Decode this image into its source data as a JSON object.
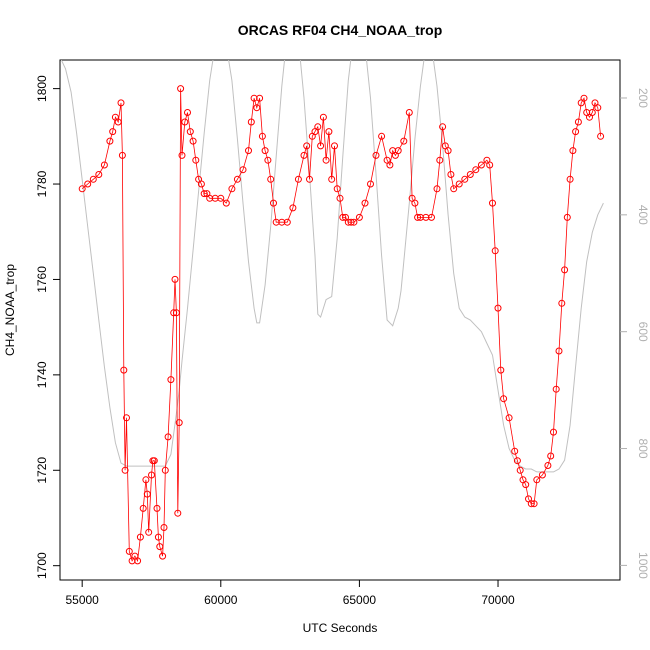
{
  "chart_data": {
    "type": "line",
    "title": "ORCAS RF04 CH4_NOAA_trop",
    "xlabel": "UTC Seconds",
    "ylabel": "CH4_NOAA_trop",
    "xlim": [
      54200,
      74400
    ],
    "ylim": [
      1697,
      1806
    ],
    "y2lim": [
      1025,
      135
    ],
    "x_ticks": [
      55000,
      60000,
      65000,
      70000
    ],
    "y_ticks": [
      1700,
      1720,
      1740,
      1760,
      1780,
      1800
    ],
    "y2_ticks": [
      200,
      400,
      600,
      800,
      1000
    ],
    "colors": {
      "series": "#ff0000",
      "secondary": "#c0c0c0",
      "axis": "#000000",
      "secondary_axis": "#b0b0b0"
    },
    "grid": false,
    "series": [
      {
        "x": [
          55000,
          55200,
          55400,
          55600,
          55800,
          56000,
          56100,
          56200,
          56300,
          56400,
          56450,
          56500,
          56550,
          56600,
          56700,
          56800,
          56900,
          57000,
          57100,
          57200,
          57300,
          57350,
          57400,
          57500,
          57550,
          57600,
          57700,
          57750,
          57800,
          57900,
          57950,
          58000,
          58100,
          58200,
          58300,
          58350,
          58400,
          58450,
          58500,
          58550,
          58600,
          58700,
          58800,
          58900,
          59000,
          59100,
          59200,
          59300,
          59400,
          59500,
          59600,
          59800,
          60000,
          60200,
          60400,
          60600,
          60800,
          61000,
          61100,
          61200,
          61300,
          61400,
          61500,
          61600,
          61700,
          61800,
          61900,
          62000,
          62200,
          62400,
          62600,
          62800,
          63000,
          63100,
          63200,
          63300,
          63400,
          63500,
          63600,
          63700,
          63800,
          63900,
          64000,
          64100,
          64200,
          64300,
          64400,
          64500,
          64600,
          64700,
          64800,
          65000,
          65200,
          65400,
          65600,
          65800,
          66000,
          66100,
          66200,
          66300,
          66400,
          66600,
          66800,
          66900,
          67000,
          67100,
          67200,
          67400,
          67600,
          67800,
          67900,
          68000,
          68100,
          68200,
          68300,
          68400,
          68600,
          68800,
          69000,
          69200,
          69400,
          69600,
          69700,
          69800,
          69900,
          70000,
          70100,
          70200,
          70400,
          70600,
          70700,
          70800,
          70900,
          71000,
          71100,
          71200,
          71300,
          71400,
          71600,
          71800,
          71900,
          72000,
          72100,
          72200,
          72300,
          72400,
          72500,
          72600,
          72700,
          72800,
          72900,
          73000,
          73100,
          73200,
          73300,
          73400,
          73500,
          73600,
          73700
        ],
        "y": [
          1779,
          1780,
          1781,
          1782,
          1784,
          1789,
          1791,
          1794,
          1793,
          1797,
          1786,
          1741,
          1720,
          1731,
          1703,
          1701,
          1702,
          1701,
          1706,
          1712,
          1718,
          1715,
          1707,
          1719,
          1722,
          1722,
          1712,
          1706,
          1704,
          1702,
          1708,
          1720,
          1727,
          1739,
          1753,
          1760,
          1753,
          1711,
          1730,
          1800,
          1786,
          1793,
          1795,
          1791,
          1789,
          1785,
          1781,
          1780,
          1778,
          1778,
          1777,
          1777,
          1777,
          1776,
          1779,
          1781,
          1783,
          1787,
          1793,
          1798,
          1796,
          1798,
          1790,
          1787,
          1785,
          1781,
          1776,
          1772,
          1772,
          1772,
          1775,
          1781,
          1786,
          1788,
          1781,
          1790,
          1791,
          1792,
          1788,
          1794,
          1785,
          1791,
          1781,
          1788,
          1779,
          1777,
          1773,
          1773,
          1772,
          1772,
          1772,
          1773,
          1776,
          1780,
          1786,
          1790,
          1785,
          1784,
          1787,
          1786,
          1787,
          1789,
          1795,
          1777,
          1776,
          1773,
          1773,
          1773,
          1773,
          1779,
          1785,
          1792,
          1788,
          1787,
          1782,
          1779,
          1780,
          1781,
          1782,
          1783,
          1784,
          1785,
          1784,
          1776,
          1766,
          1754,
          1741,
          1735,
          1731,
          1724,
          1722,
          1720,
          1718,
          1717,
          1714,
          1713,
          1713,
          1718,
          1719,
          1721,
          1723,
          1728,
          1737,
          1745,
          1755,
          1762,
          1773,
          1781,
          1787,
          1791,
          1793,
          1797,
          1798,
          1795,
          1794,
          1795,
          1797,
          1796,
          1790
        ]
      },
      {
        "x": [
          54200,
          54400,
          54600,
          54800,
          55000,
          55200,
          55400,
          55600,
          55800,
          56000,
          56200,
          56400,
          56600,
          56800,
          57000,
          57400,
          57800,
          58000,
          58200,
          58400,
          58500,
          58600,
          58800,
          59000,
          59200,
          59400,
          59600,
          59800,
          60000,
          60200,
          60400,
          60600,
          60800,
          61000,
          61200,
          61300,
          61400,
          61600,
          61800,
          62000,
          62200,
          62400,
          62600,
          62800,
          63000,
          63200,
          63400,
          63500,
          63600,
          63800,
          64000,
          64200,
          64400,
          64600,
          64800,
          65000,
          65200,
          65400,
          65600,
          65800,
          66000,
          66200,
          66400,
          66500,
          66600,
          66800,
          67000,
          67200,
          67400,
          67600,
          67800,
          68000,
          68200,
          68400,
          68600,
          68800,
          69000,
          69200,
          69400,
          69600,
          69800,
          70000,
          70200,
          70400,
          70600,
          70800,
          71000,
          71200,
          71400,
          71600,
          71800,
          72000,
          72200,
          72400,
          72600,
          72800,
          73000,
          73200,
          73400,
          73600,
          73800
        ],
        "y": [
          130,
          150,
          190,
          260,
          340,
          420,
          500,
          580,
          660,
          730,
          790,
          825,
          830,
          830,
          830,
          830,
          830,
          830,
          810,
          740,
          700,
          650,
          560,
          460,
          360,
          260,
          170,
          110,
          90,
          110,
          170,
          270,
          380,
          480,
          560,
          585,
          585,
          520,
          420,
          300,
          180,
          90,
          60,
          100,
          200,
          330,
          470,
          570,
          575,
          545,
          540,
          440,
          300,
          170,
          90,
          70,
          110,
          200,
          330,
          470,
          580,
          590,
          560,
          530,
          480,
          380,
          270,
          180,
          110,
          110,
          180,
          280,
          400,
          500,
          560,
          575,
          580,
          590,
          600,
          620,
          640,
          700,
          760,
          800,
          820,
          830,
          835,
          835,
          840,
          840,
          840,
          840,
          835,
          820,
          760,
          660,
          560,
          480,
          430,
          400,
          380
        ]
      }
    ]
  }
}
